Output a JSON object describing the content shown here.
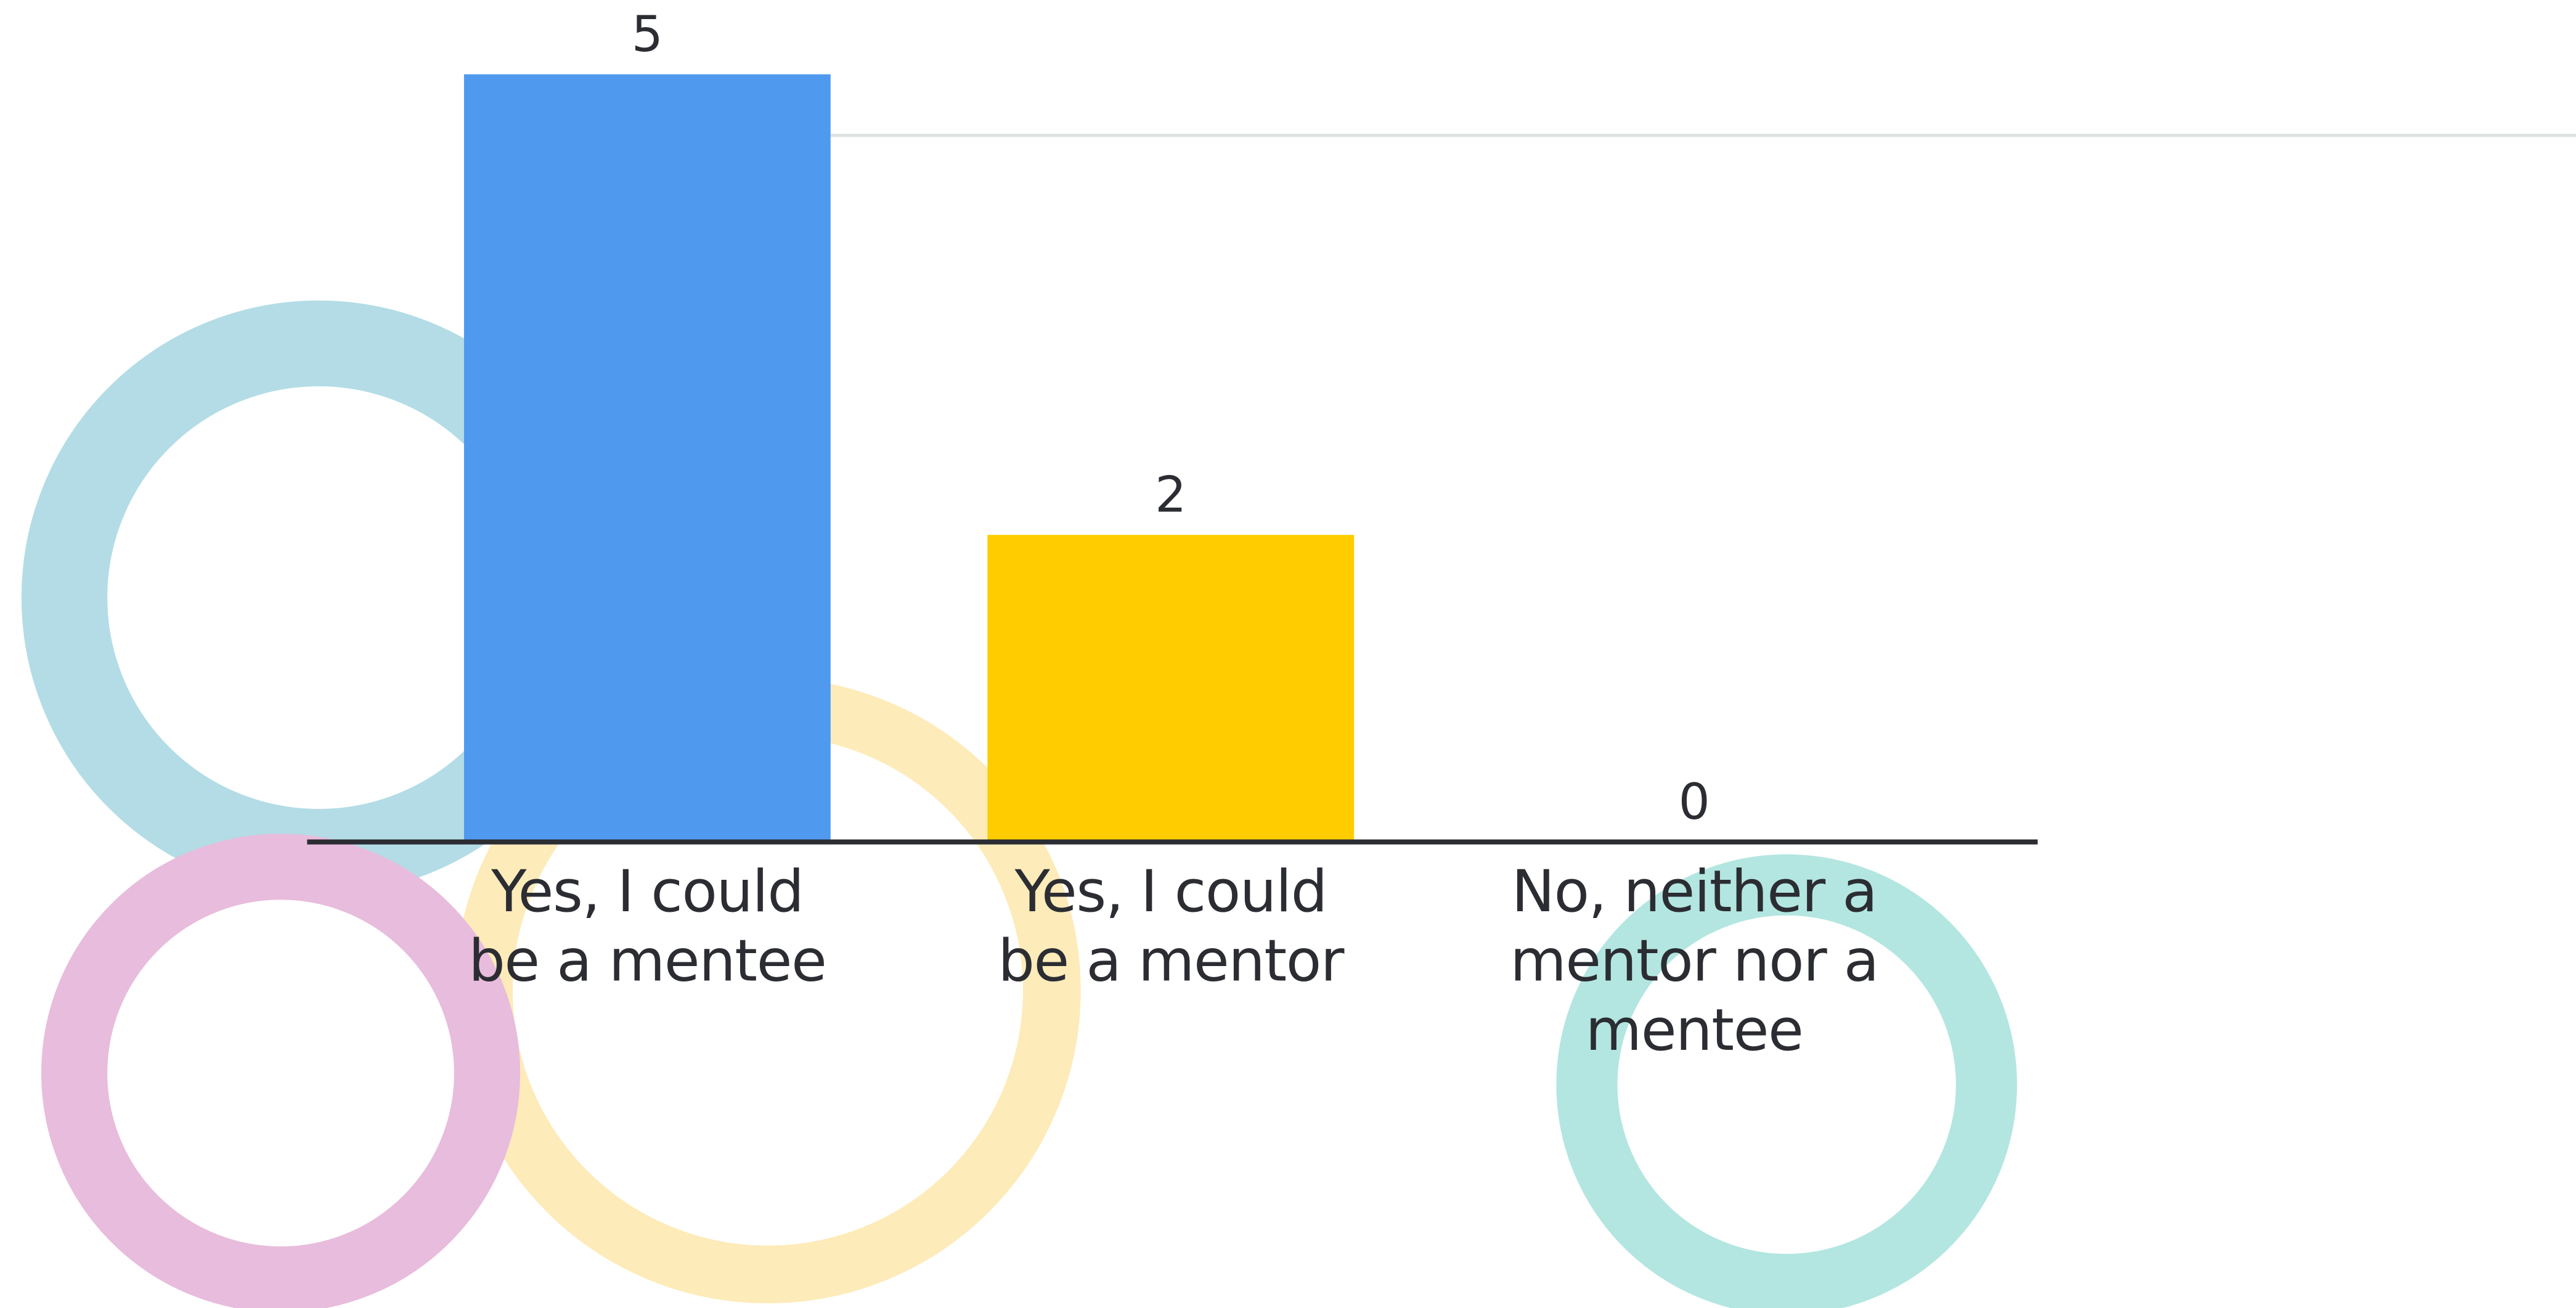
{
  "chart_data": {
    "type": "bar",
    "categories": [
      "Yes, I could be a mentee",
      "Yes, I could be a mentor",
      "No, neither a mentor nor a mentee"
    ],
    "values": [
      5,
      2,
      0
    ],
    "colors": [
      "#4f9aef",
      "#ffcc00",
      "#f1755d"
    ]
  }
}
